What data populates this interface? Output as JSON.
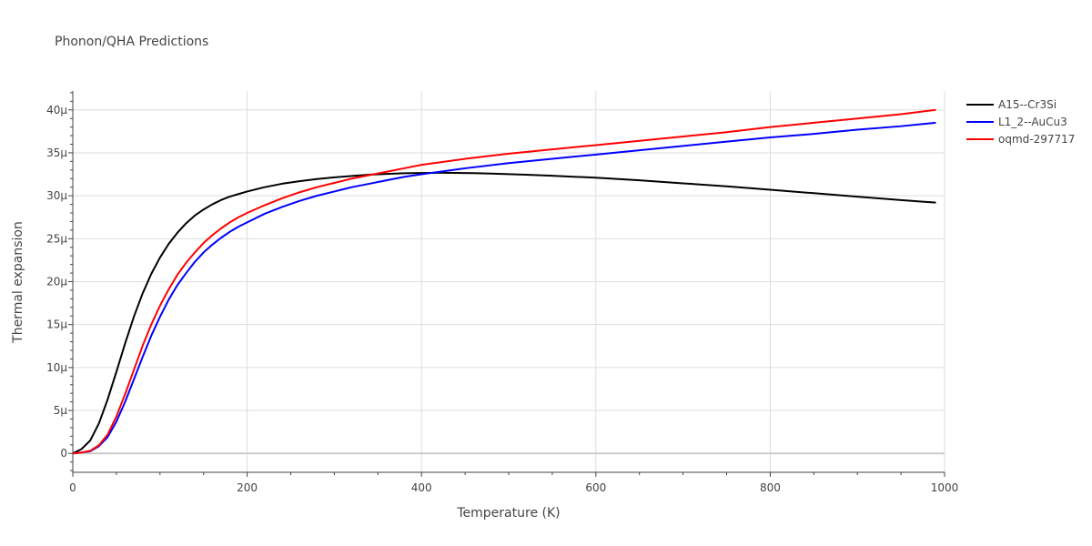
{
  "chart_data": {
    "type": "line",
    "title": "Phonon/QHA Predictions",
    "xlabel": "Temperature (K)",
    "ylabel": "Thermal expansion",
    "xlim": [
      0,
      1000
    ],
    "ylim": [
      -2.2e-06,
      4.22e-05
    ],
    "grid": true,
    "legend_position": "top-right",
    "xticks": [
      0,
      200,
      400,
      600,
      800,
      1000
    ],
    "xtick_labels": [
      "0",
      "200",
      "400",
      "600",
      "800",
      "1000"
    ],
    "yticks": [
      0,
      5e-06,
      1e-05,
      1.5e-05,
      2e-05,
      2.5e-05,
      3e-05,
      3.5e-05,
      4e-05
    ],
    "ytick_labels": [
      "0",
      "5μ",
      "10μ",
      "15μ",
      "20μ",
      "25μ",
      "30μ",
      "35μ",
      "40μ"
    ],
    "series": [
      {
        "name": "A15--Cr3Si",
        "color": "#000000",
        "x": [
          0,
          10,
          20,
          30,
          40,
          50,
          60,
          70,
          80,
          90,
          100,
          110,
          120,
          130,
          140,
          150,
          160,
          170,
          180,
          190,
          200,
          220,
          240,
          260,
          280,
          300,
          320,
          340,
          360,
          380,
          400,
          420,
          440,
          460,
          480,
          500,
          520,
          550,
          600,
          650,
          700,
          750,
          800,
          850,
          900,
          950,
          990
        ],
        "y": [
          0,
          5e-07,
          1.5e-06,
          3.5e-06,
          6.3e-06,
          9.5e-06,
          1.28e-05,
          1.59e-05,
          1.86e-05,
          2.09e-05,
          2.28e-05,
          2.44e-05,
          2.57e-05,
          2.68e-05,
          2.77e-05,
          2.84e-05,
          2.9e-05,
          2.95e-05,
          2.99e-05,
          3.02e-05,
          3.05e-05,
          3.1e-05,
          3.14e-05,
          3.17e-05,
          3.195e-05,
          3.215e-05,
          3.23e-05,
          3.245e-05,
          3.255e-05,
          3.262e-05,
          3.265e-05,
          3.267e-05,
          3.266e-05,
          3.263e-05,
          3.258e-05,
          3.252e-05,
          3.245e-05,
          3.233e-05,
          3.21e-05,
          3.18e-05,
          3.145e-05,
          3.11e-05,
          3.07e-05,
          3.03e-05,
          2.99e-05,
          2.95e-05,
          2.92e-05
        ]
      },
      {
        "name": "L1_2--AuCu3",
        "color": "#0000ff",
        "x": [
          0,
          10,
          20,
          30,
          40,
          50,
          60,
          70,
          80,
          90,
          100,
          110,
          120,
          130,
          140,
          150,
          160,
          170,
          180,
          190,
          200,
          220,
          240,
          260,
          280,
          300,
          320,
          340,
          360,
          380,
          400,
          450,
          500,
          550,
          600,
          650,
          700,
          750,
          800,
          850,
          900,
          950,
          990
        ],
        "y": [
          0,
          1e-07,
          2.5e-07,
          8.5e-07,
          1.9e-06,
          3.7e-06,
          6e-06,
          8.6e-06,
          1.12e-05,
          1.37e-05,
          1.59e-05,
          1.79e-05,
          1.96e-05,
          2.1e-05,
          2.23e-05,
          2.34e-05,
          2.43e-05,
          2.51e-05,
          2.58e-05,
          2.64e-05,
          2.69e-05,
          2.79e-05,
          2.87e-05,
          2.94e-05,
          3e-05,
          3.05e-05,
          3.1e-05,
          3.14e-05,
          3.18e-05,
          3.22e-05,
          3.25e-05,
          3.32e-05,
          3.38e-05,
          3.43e-05,
          3.48e-05,
          3.53e-05,
          3.58e-05,
          3.63e-05,
          3.68e-05,
          3.72e-05,
          3.77e-05,
          3.81e-05,
          3.85e-05
        ]
      },
      {
        "name": "oqmd-297717",
        "color": "#ff0000",
        "x": [
          0,
          10,
          20,
          30,
          40,
          50,
          60,
          70,
          80,
          90,
          100,
          110,
          120,
          130,
          140,
          150,
          160,
          170,
          180,
          190,
          200,
          220,
          240,
          260,
          280,
          300,
          320,
          340,
          360,
          380,
          400,
          450,
          500,
          550,
          600,
          650,
          700,
          750,
          800,
          850,
          900,
          950,
          990
        ],
        "y": [
          0,
          1e-07,
          3e-07,
          9.5e-07,
          2.2e-06,
          4.3e-06,
          6.9e-06,
          9.7e-06,
          1.25e-05,
          1.5e-05,
          1.72e-05,
          1.91e-05,
          2.08e-05,
          2.22e-05,
          2.34e-05,
          2.45e-05,
          2.54e-05,
          2.62e-05,
          2.69e-05,
          2.75e-05,
          2.8e-05,
          2.89e-05,
          2.97e-05,
          3.04e-05,
          3.1e-05,
          3.15e-05,
          3.2e-05,
          3.24e-05,
          3.28e-05,
          3.32e-05,
          3.36e-05,
          3.43e-05,
          3.49e-05,
          3.54e-05,
          3.59e-05,
          3.64e-05,
          3.69e-05,
          3.74e-05,
          3.8e-05,
          3.85e-05,
          3.9e-05,
          3.95e-05,
          4e-05
        ]
      }
    ]
  }
}
